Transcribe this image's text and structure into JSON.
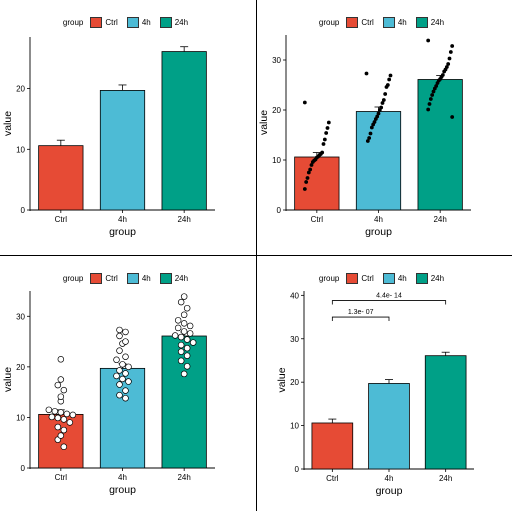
{
  "colors": {
    "Ctrl": "#E64B35",
    "4h": "#4DBBD5",
    "24h": "#00A087"
  },
  "chart_data": [
    {
      "type": "bar",
      "legend": {
        "title": "group",
        "items": [
          "Ctrl",
          "4h",
          "24h"
        ],
        "placement": "top"
      },
      "categories": [
        "Ctrl",
        "4h",
        "24h"
      ],
      "values": [
        10.6,
        19.7,
        26.1
      ],
      "error": [
        0.9,
        0.9,
        0.8
      ],
      "xlabel": "group",
      "ylabel": "value",
      "ylim": [
        0,
        28.5
      ],
      "yticks": [
        0,
        10,
        20
      ],
      "grid": false
    },
    {
      "type": "bar",
      "legend": {
        "title": "group",
        "items": [
          "Ctrl",
          "4h",
          "24h"
        ],
        "placement": "top"
      },
      "categories": [
        "Ctrl",
        "4h",
        "24h"
      ],
      "values": [
        10.6,
        19.7,
        26.1
      ],
      "error": [
        0.9,
        0.9,
        0.8
      ],
      "points": [
        [
          21.5,
          17.5,
          16.4,
          15.4,
          14.1,
          13.2,
          11.5,
          11.2,
          11.0,
          10.7,
          10.5,
          10.1,
          9.9,
          9.6,
          9.0,
          8.1,
          7.5,
          6.4,
          5.6,
          4.2
        ],
        [
          27.3,
          26.9,
          26.1,
          25.0,
          24.6,
          23.2,
          22.0,
          21.4,
          20.5,
          20.0,
          19.3,
          18.7,
          18.2,
          17.6,
          17.1,
          16.5,
          15.3,
          14.4,
          13.8
        ],
        [
          33.9,
          32.8,
          31.6,
          30.3,
          29.2,
          28.6,
          28.1,
          27.7,
          27.0,
          26.6,
          26.2,
          25.9,
          25.4,
          24.8,
          24.3,
          23.7,
          23.0,
          22.2,
          21.2,
          20.1,
          18.6
        ]
      ],
      "point_style": "filled",
      "xlabel": "group",
      "ylabel": "value",
      "ylim": [
        0,
        35
      ],
      "yticks": [
        0,
        10,
        20,
        30
      ],
      "grid": false
    },
    {
      "type": "bar",
      "legend": {
        "title": "group",
        "items": [
          "Ctrl",
          "4h",
          "24h"
        ],
        "placement": "top"
      },
      "categories": [
        "Ctrl",
        "4h",
        "24h"
      ],
      "values": [
        10.6,
        19.7,
        26.1
      ],
      "error": [
        0.9,
        0.9,
        0.8
      ],
      "points": [
        [
          21.5,
          17.5,
          16.4,
          15.4,
          14.1,
          13.2,
          11.5,
          11.2,
          11.0,
          10.7,
          10.5,
          10.1,
          9.9,
          9.6,
          9.0,
          8.1,
          7.5,
          6.4,
          5.6,
          4.2
        ],
        [
          27.3,
          26.9,
          26.1,
          25.0,
          24.6,
          23.2,
          22.0,
          21.4,
          20.5,
          20.0,
          19.3,
          18.7,
          18.2,
          17.6,
          17.1,
          16.5,
          15.3,
          14.4,
          13.8
        ],
        [
          33.9,
          32.8,
          31.6,
          30.3,
          29.2,
          28.6,
          28.1,
          27.7,
          27.0,
          26.6,
          26.2,
          25.9,
          25.4,
          24.8,
          24.3,
          23.7,
          23.0,
          22.2,
          21.2,
          20.1,
          18.6
        ]
      ],
      "point_style": "open",
      "xlabel": "group",
      "ylabel": "value",
      "ylim": [
        0,
        35
      ],
      "yticks": [
        0,
        10,
        20,
        30
      ],
      "grid": false
    },
    {
      "type": "bar",
      "legend": {
        "title": "group",
        "items": [
          "Ctrl",
          "4h",
          "24h"
        ],
        "placement": "top"
      },
      "categories": [
        "Ctrl",
        "4h",
        "24h"
      ],
      "values": [
        10.6,
        19.7,
        26.1
      ],
      "error": [
        0.9,
        0.9,
        0.8
      ],
      "comparisons": [
        {
          "from": "Ctrl",
          "to": "4h",
          "y": 35.0,
          "label": "1.3e- 07"
        },
        {
          "from": "Ctrl",
          "to": "24h",
          "y": 38.8,
          "label": "4.4e- 14"
        }
      ],
      "xlabel": "group",
      "ylabel": "value",
      "ylim": [
        0,
        41
      ],
      "yticks": [
        0,
        10,
        20,
        30,
        40
      ],
      "grid": false
    }
  ]
}
